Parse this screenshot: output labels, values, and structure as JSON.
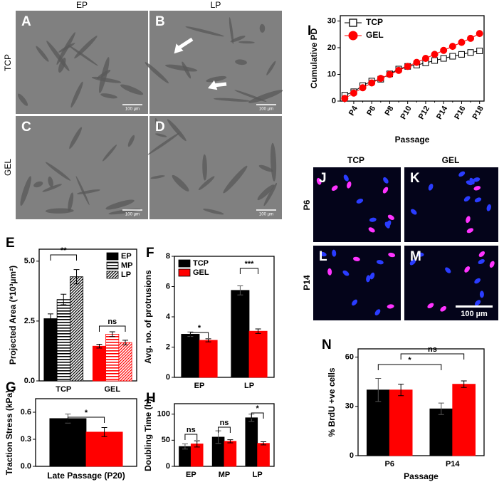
{
  "figure": {
    "micrographs": {
      "columns": [
        "EP",
        "LP"
      ],
      "rows": [
        "TCP",
        "GEL"
      ],
      "panels": [
        "A",
        "B",
        "C",
        "D"
      ],
      "scale_bar": "100 µm"
    },
    "fluorescence": {
      "columns": [
        "TCP",
        "GEL"
      ],
      "rows": [
        "P6",
        "P14"
      ],
      "panels": [
        "J",
        "K",
        "L",
        "M"
      ],
      "scale_bar": "100 µm"
    }
  },
  "chart_data": [
    {
      "type": "bar",
      "panel": "E",
      "ylabel": "Projected Area (*10³µm²)",
      "categories": [
        "TCP",
        "GEL"
      ],
      "category_colors": [
        "#000000",
        "#ff0000"
      ],
      "series": [
        {
          "name": "EP",
          "pattern": "solid",
          "values": [
            2.6,
            1.45
          ],
          "errors": [
            0.2,
            0.08
          ]
        },
        {
          "name": "MP",
          "pattern": "horizontal",
          "values": [
            3.4,
            1.95
          ],
          "errors": [
            0.22,
            0.1
          ]
        },
        {
          "name": "LP",
          "pattern": "diagonal",
          "values": [
            4.35,
            1.6
          ],
          "errors": [
            0.3,
            0.1
          ]
        }
      ],
      "ylim": [
        0,
        5.5
      ],
      "yticks": [
        {
          "value": 0,
          "label": "0.0"
        },
        2.5,
        {
          "value": 5,
          "label": "5.0"
        }
      ],
      "legend": "upper right",
      "annotations": [
        "**",
        "ns"
      ]
    },
    {
      "type": "bar",
      "panel": "F",
      "ylabel": "Avg. no. of protrusions",
      "categories": [
        "EP",
        "LP"
      ],
      "series": [
        {
          "name": "TCP",
          "color": "#000000",
          "values": [
            2.85,
            5.75
          ],
          "errors": [
            0.15,
            0.3
          ]
        },
        {
          "name": "GEL",
          "color": "#ff0000",
          "values": [
            2.45,
            3.05
          ],
          "errors": [
            0.1,
            0.15
          ]
        }
      ],
      "ylim": [
        0,
        8
      ],
      "yticks": [
        0,
        2,
        4,
        6,
        8
      ],
      "legend": "upper left",
      "annotations": [
        "*",
        "***"
      ]
    },
    {
      "type": "bar",
      "panel": "G",
      "ylabel": "Traction Stress (kPa)",
      "xlabel": "Late Passage (P20)",
      "series": [
        {
          "color": "#000000",
          "values": [
            0.53
          ],
          "errors": [
            0.05
          ]
        },
        {
          "color": "#ff0000",
          "values": [
            0.38
          ],
          "errors": [
            0.05
          ]
        }
      ],
      "ylim": [
        0,
        0.75
      ],
      "yticks": [
        {
          "value": 0,
          "label": "0.0"
        },
        0.3,
        0.6
      ],
      "annotations": [
        "*"
      ]
    },
    {
      "type": "bar",
      "panel": "H",
      "ylabel": "Doubling Time (h)",
      "xlabel": "Passage",
      "categories": [
        "EP",
        "MP",
        "LP"
      ],
      "series": [
        {
          "color": "#000000",
          "values": [
            38,
            56,
            93
          ],
          "errors": [
            5,
            12,
            7
          ]
        },
        {
          "color": "#ff0000",
          "values": [
            43,
            48,
            44
          ],
          "errors": [
            6,
            3,
            3
          ]
        }
      ],
      "ylim": [
        0,
        120
      ],
      "yticks": [
        0,
        50,
        100
      ],
      "annotations": [
        "ns",
        "ns",
        "*"
      ]
    },
    {
      "type": "line",
      "panel": "I",
      "ylabel": "Cumulative PD",
      "xlabel": "Passage",
      "categories": [
        null,
        "P4",
        null,
        "P6",
        null,
        "P8",
        null,
        "P10",
        null,
        "P12",
        null,
        "P14",
        null,
        "P16",
        null,
        "P18"
      ],
      "series": [
        {
          "name": "TCP",
          "color": "#000000",
          "marker": "square",
          "filled": false,
          "values": [
            2.2,
            3.5,
            5.8,
            7.5,
            8.2,
            10.2,
            12,
            13,
            13.5,
            14.3,
            15.2,
            16,
            16.8,
            17.5,
            18.2,
            18.8
          ]
        },
        {
          "name": "GEL",
          "color": "#ff0000",
          "marker": "circle",
          "filled": true,
          "values": [
            1,
            3,
            5,
            6.8,
            8.5,
            10,
            11.5,
            13,
            14.5,
            16,
            17.5,
            19,
            20.5,
            22,
            23.5,
            25.3
          ]
        }
      ],
      "ylim": [
        0,
        32
      ],
      "yticks": [
        0,
        10,
        20,
        30
      ],
      "legend": "upper left"
    },
    {
      "type": "bar",
      "panel": "N",
      "ylabel": "% BrdU +ve cells",
      "xlabel": "Passage",
      "categories": [
        "P6",
        "P14"
      ],
      "series": [
        {
          "color": "#000000",
          "values": [
            40,
            28.5
          ],
          "errors": [
            7,
            3.5
          ]
        },
        {
          "color": "#ff0000",
          "values": [
            40,
            43.5
          ],
          "errors": [
            3.5,
            2
          ]
        }
      ],
      "ylim": [
        0,
        65
      ],
      "yticks": [
        0,
        30,
        60
      ],
      "annotations": [
        "*",
        "ns"
      ]
    }
  ]
}
